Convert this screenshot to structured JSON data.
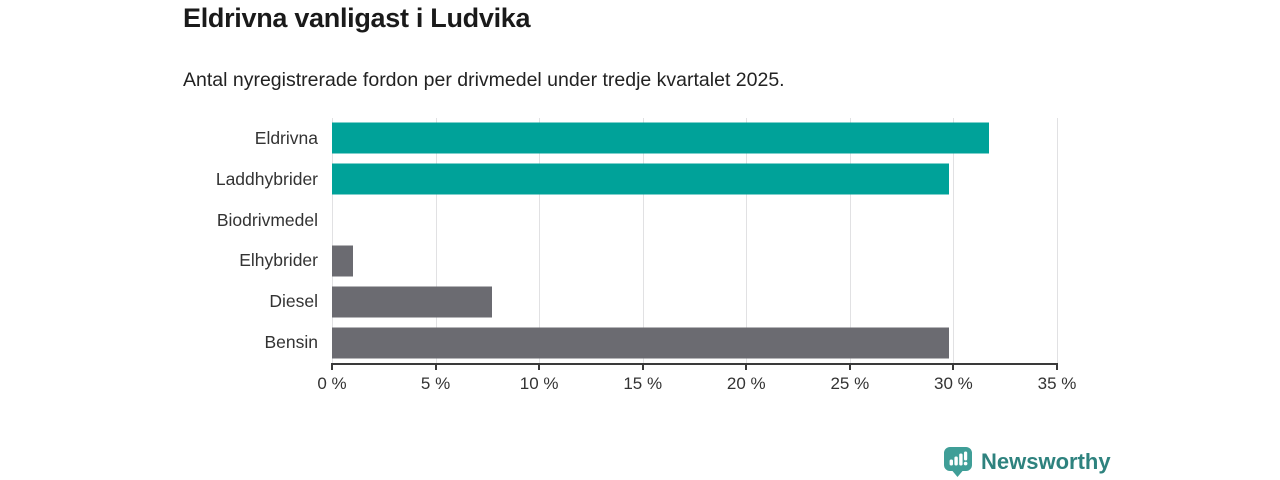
{
  "header": {
    "title": "Eldrivna vanligast i Ludvika",
    "subtitle": "Antal nyregistrerade fordon per drivmedel under tredje kvartalet 2025."
  },
  "chart_data": {
    "type": "bar",
    "orientation": "horizontal",
    "title": "Eldrivna vanligast i Ludvika",
    "subtitle": "Antal nyregistrerade fordon per drivmedel under tredje kvartalet 2025.",
    "categories": [
      "Eldrivna",
      "Laddhybrider",
      "Biodrivmedel",
      "Elhybrider",
      "Diesel",
      "Bensin"
    ],
    "values": [
      31.7,
      29.8,
      0,
      1.0,
      7.7,
      29.8
    ],
    "unit": "%",
    "bar_colors": [
      "#00a299",
      "#00a299",
      "#6b6b71",
      "#6b6b71",
      "#6b6b71",
      "#6b6b71"
    ],
    "xlim": [
      0,
      35
    ],
    "x_ticks": [
      0,
      5,
      10,
      15,
      20,
      25,
      30,
      35
    ],
    "x_tick_labels": [
      "0 %",
      "5 %",
      "10 %",
      "15 %",
      "20 %",
      "25 %",
      "30 %",
      "35 %"
    ],
    "grid": true,
    "legend": "none"
  },
  "footer": {
    "brand": "Newsworthy",
    "logo_icon": "bar-chart-speech-bubble-icon"
  },
  "colors": {
    "accent_teal": "#00a299",
    "neutral_gray": "#6b6b71",
    "gridline": "#e1e1e3",
    "axis": "#3a3a3a",
    "text_dark": "#1a1a1a",
    "text_label": "#333333",
    "brand_teal_icon": "#3f9e97",
    "brand_teal_text": "#2e827e"
  }
}
